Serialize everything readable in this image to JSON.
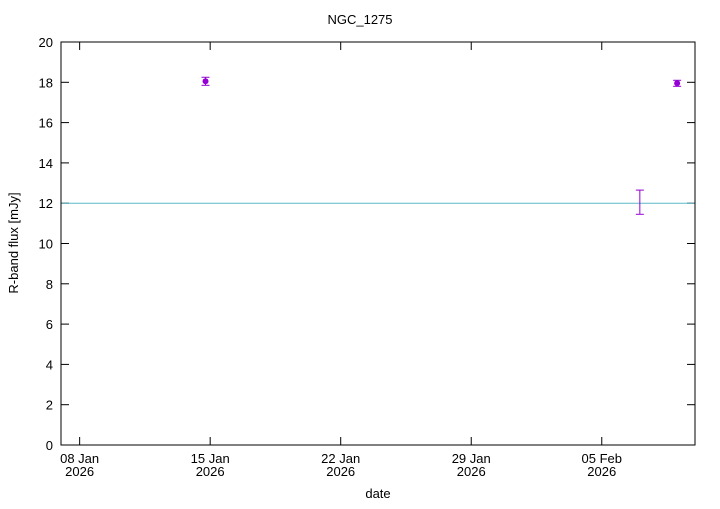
{
  "chart_data": {
    "type": "errorbar",
    "title": "NGC_1275",
    "xlabel": "date",
    "ylabel": "R-band flux [mJy]",
    "xlim": [
      "2026-01-07T00:00:00Z",
      "2026-02-10T00:00:00Z"
    ],
    "xticks": [
      {
        "value": "2026-01-08T00:00:00Z",
        "label": [
          "08 Jan",
          "2026"
        ]
      },
      {
        "value": "2026-01-15T00:00:00Z",
        "label": [
          "15 Jan",
          "2026"
        ]
      },
      {
        "value": "2026-01-22T00:00:00Z",
        "label": [
          "22 Jan",
          "2026"
        ]
      },
      {
        "value": "2026-01-29T00:00:00Z",
        "label": [
          "29 Jan",
          "2026"
        ]
      },
      {
        "value": "2026-02-05T00:00:00Z",
        "label": [
          "05 Feb",
          "2026"
        ]
      }
    ],
    "ylim": [
      0,
      20
    ],
    "yticks": [
      0,
      2,
      4,
      6,
      8,
      10,
      12,
      14,
      16,
      18,
      20
    ],
    "reference_line": {
      "value": 12,
      "color": "#5fb8c8"
    },
    "series": [
      {
        "color": "#9400d3",
        "points": true,
        "x": [
          "2026-01-14T18:00:00Z",
          "2026-02-09T01:00:00Z"
        ],
        "values": [
          18.05,
          17.95
        ],
        "errors": [
          0.2,
          0.15
        ]
      },
      {
        "color": "#9400d3",
        "points": false,
        "x": [
          "2026-02-07T01:00:00Z"
        ],
        "values": [
          12.05
        ],
        "errors": [
          0.6
        ]
      }
    ]
  }
}
